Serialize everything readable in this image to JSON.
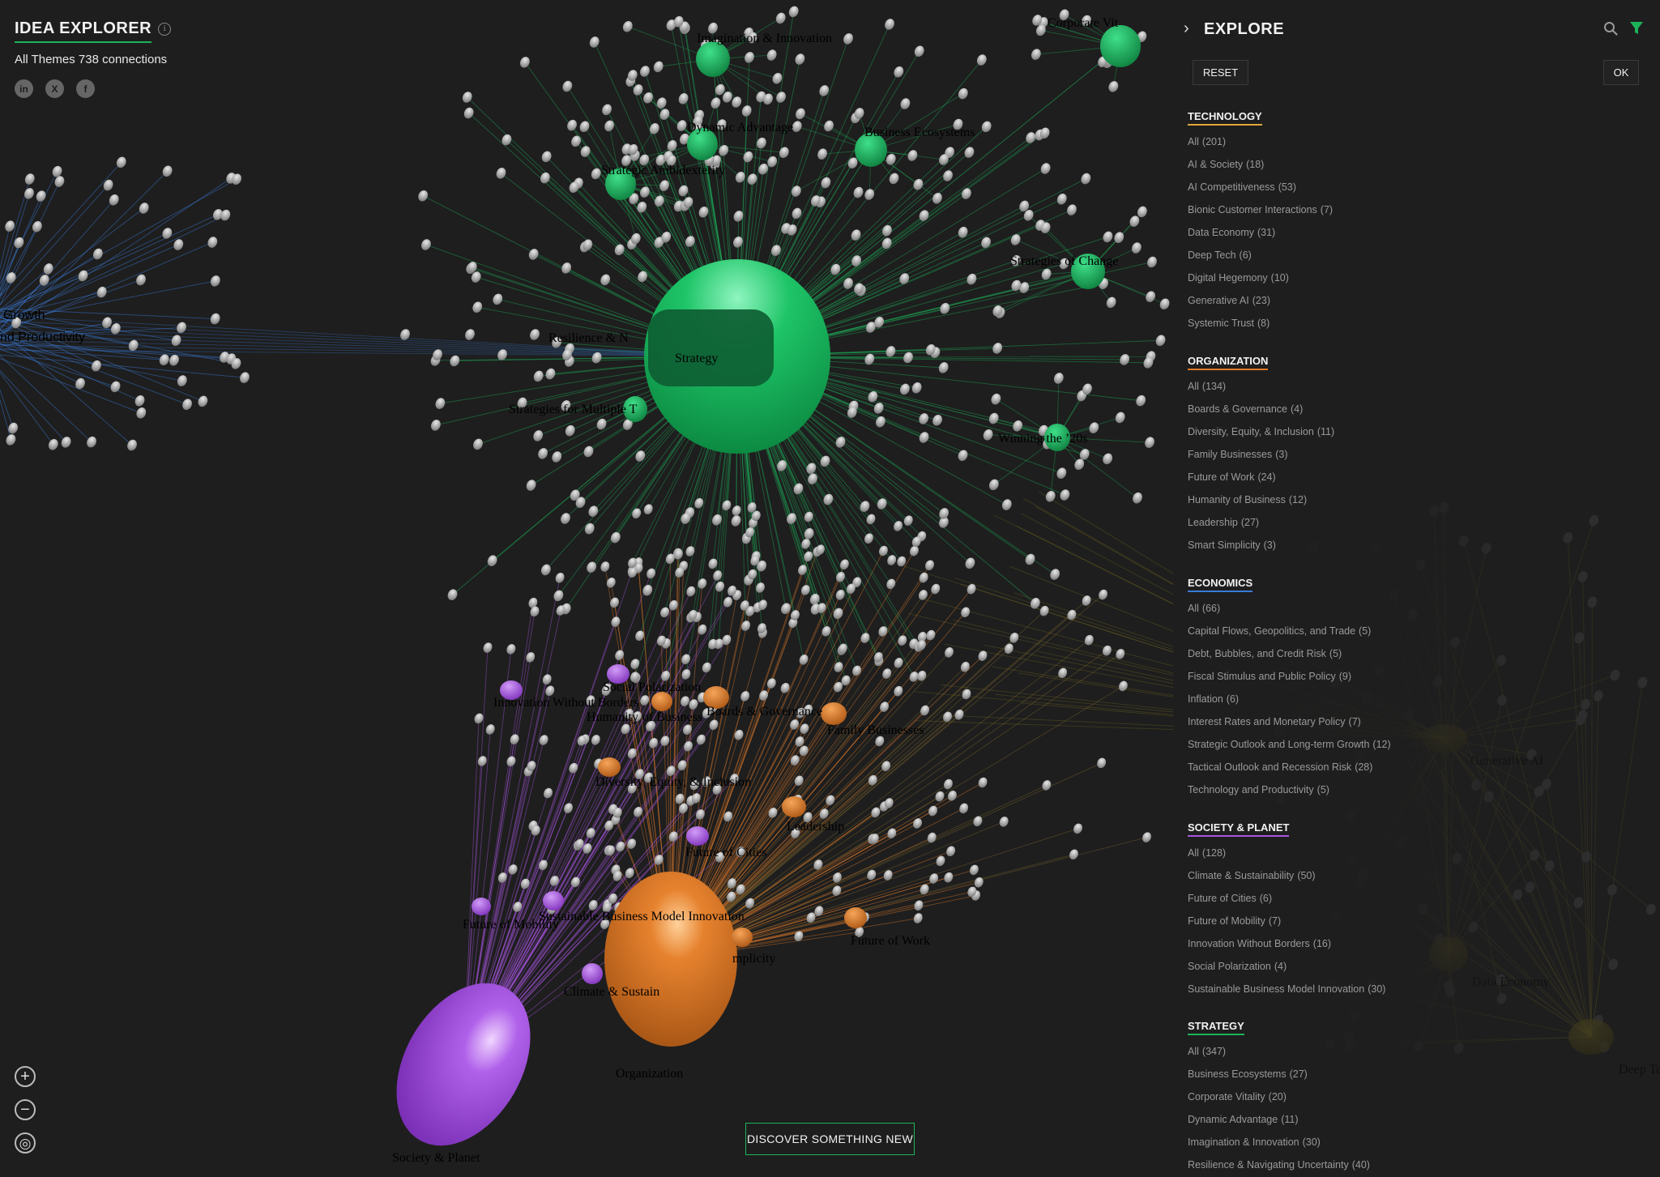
{
  "header": {
    "title": "IDEA EXPLORER",
    "info_icon": "info-icon",
    "subtitle": "All Themes 738 connections",
    "social": [
      {
        "name": "linkedin-icon",
        "glyph": "in"
      },
      {
        "name": "x-icon",
        "glyph": "X"
      },
      {
        "name": "facebook-icon",
        "glyph": "f"
      }
    ]
  },
  "controls": {
    "zoom_in": "+",
    "zoom_out": "−",
    "recenter": "◎",
    "discover": "DISCOVER SOMETHING NEW"
  },
  "panel": {
    "title": "EXPLORE",
    "reset": "RESET",
    "ok": "OK",
    "sections": [
      {
        "heading": "TECHNOLOGY",
        "color": "#e0a83a",
        "items": [
          {
            "label": "All",
            "count": "(201)"
          },
          {
            "label": "AI & Society",
            "count": "(18)"
          },
          {
            "label": "AI Competitiveness",
            "count": "(53)"
          },
          {
            "label": "Bionic Customer Interactions",
            "count": "(7)"
          },
          {
            "label": "Data Economy",
            "count": "(31)"
          },
          {
            "label": "Deep Tech",
            "count": "(6)"
          },
          {
            "label": "Digital Hegemony",
            "count": "(10)"
          },
          {
            "label": "Generative AI",
            "count": "(23)"
          },
          {
            "label": "Systemic Trust",
            "count": "(8)"
          }
        ]
      },
      {
        "heading": "ORGANIZATION",
        "color": "#e07a2a",
        "items": [
          {
            "label": "All",
            "count": "(134)"
          },
          {
            "label": "Boards & Governance",
            "count": "(4)"
          },
          {
            "label": "Diversity, Equity, & Inclusion",
            "count": "(11)"
          },
          {
            "label": "Family Businesses",
            "count": "(3)"
          },
          {
            "label": "Future of Work",
            "count": "(24)"
          },
          {
            "label": "Humanity of Business",
            "count": "(12)"
          },
          {
            "label": "Leadership",
            "count": "(27)"
          },
          {
            "label": "Smart Simplicity",
            "count": "(3)"
          }
        ]
      },
      {
        "heading": "ECONOMICS",
        "color": "#3a7ad8",
        "items": [
          {
            "label": "All",
            "count": "(66)"
          },
          {
            "label": "Capital Flows, Geopolitics, and Trade",
            "count": "(5)"
          },
          {
            "label": "Debt, Bubbles, and Credit Risk",
            "count": "(5)"
          },
          {
            "label": "Fiscal Stimulus and Public Policy",
            "count": "(9)"
          },
          {
            "label": "Inflation",
            "count": "(6)"
          },
          {
            "label": "Interest Rates and Monetary Policy",
            "count": "(7)"
          },
          {
            "label": "Strategic Outlook and Long-term Growth",
            "count": "(12)"
          },
          {
            "label": "Tactical Outlook and Recession Risk",
            "count": "(28)"
          },
          {
            "label": "Technology and Productivity",
            "count": "(5)"
          }
        ]
      },
      {
        "heading": "SOCIETY & PLANET",
        "color": "#a855e0",
        "items": [
          {
            "label": "All",
            "count": "(128)"
          },
          {
            "label": "Climate & Sustainability",
            "count": "(50)"
          },
          {
            "label": "Future of Cities",
            "count": "(6)"
          },
          {
            "label": "Future of Mobility",
            "count": "(7)"
          },
          {
            "label": "Innovation Without Borders",
            "count": "(16)"
          },
          {
            "label": "Social Polarization",
            "count": "(4)"
          },
          {
            "label": "Sustainable Business Model Innovation",
            "count": "(30)"
          }
        ]
      },
      {
        "heading": "STRATEGY",
        "color": "#1db35a",
        "items": [
          {
            "label": "All",
            "count": "(347)"
          },
          {
            "label": "Business Ecosystems",
            "count": "(27)"
          },
          {
            "label": "Corporate Vitality",
            "count": "(20)"
          },
          {
            "label": "Dynamic Advantage",
            "count": "(11)"
          },
          {
            "label": "Imagination & Innovation",
            "count": "(30)"
          },
          {
            "label": "Resilience & Navigating Uncertainty",
            "count": "(40)"
          }
        ]
      }
    ]
  },
  "graph": {
    "colors": {
      "strategy": "#1db35a",
      "organization": "#e07a2a",
      "society": "#a855e0",
      "economics": "#3a7ad8",
      "technology": "#8a7a20"
    },
    "labels": [
      {
        "id": "strategy-hub",
        "text": "Strategy"
      },
      {
        "id": "organization-hub",
        "text": "Organization"
      },
      {
        "id": "society-hub",
        "text": "Society & Planet"
      },
      {
        "id": "imagination",
        "text": "Imagination & Innovation"
      },
      {
        "id": "corporate-vitality",
        "text": "Corporate Vit"
      },
      {
        "id": "corporate-vitality-faded",
        "text": "ality"
      },
      {
        "id": "dynamic-advantage",
        "text": "Dynamic Advantage"
      },
      {
        "id": "business-ecosystems",
        "text": "Business Ecosystems"
      },
      {
        "id": "strategic-ambidexterity",
        "text": "Strategic Ambidexterity"
      },
      {
        "id": "strategies-of-change",
        "text": "Strategies of Change"
      },
      {
        "id": "resilience",
        "text": "Resilience & N"
      },
      {
        "id": "strategies-multiple",
        "text": "Strategies for Multiple T"
      },
      {
        "id": "winning-20s",
        "text": "Winning the ’20s"
      },
      {
        "id": "growth",
        "text": "Growth"
      },
      {
        "id": "productivity",
        "text": "nd Productivity"
      },
      {
        "id": "innovation-borders",
        "text": "Innovation Without Borders"
      },
      {
        "id": "social-polarization",
        "text": "Social Polarization"
      },
      {
        "id": "humanity",
        "text": "Humanity"
      },
      {
        "id": "humanity-faded",
        "text": "of Business"
      },
      {
        "id": "boards",
        "text": "Boards & Governance"
      },
      {
        "id": "family-businesses",
        "text": "Family Businesses"
      },
      {
        "id": "dei",
        "text": "Diversity, Equity, & Inclusion"
      },
      {
        "id": "leadership",
        "text": "Leadership"
      },
      {
        "id": "future-cities",
        "text": "Future of Cities"
      },
      {
        "id": "sbmi",
        "text": "Sustainable Business Model Innovation"
      },
      {
        "id": "future-mobility",
        "text": "Future of Mobility"
      },
      {
        "id": "future-work",
        "text": "Future of Work"
      },
      {
        "id": "climate",
        "text": "Climate & Sustain"
      },
      {
        "id": "simplicity",
        "text": "mplicity"
      },
      {
        "id": "generative-ai",
        "text": "Generative AI"
      },
      {
        "id": "data-economy",
        "text": "Data Economy"
      },
      {
        "id": "deep-tech",
        "text": "Deep Tech"
      }
    ]
  }
}
